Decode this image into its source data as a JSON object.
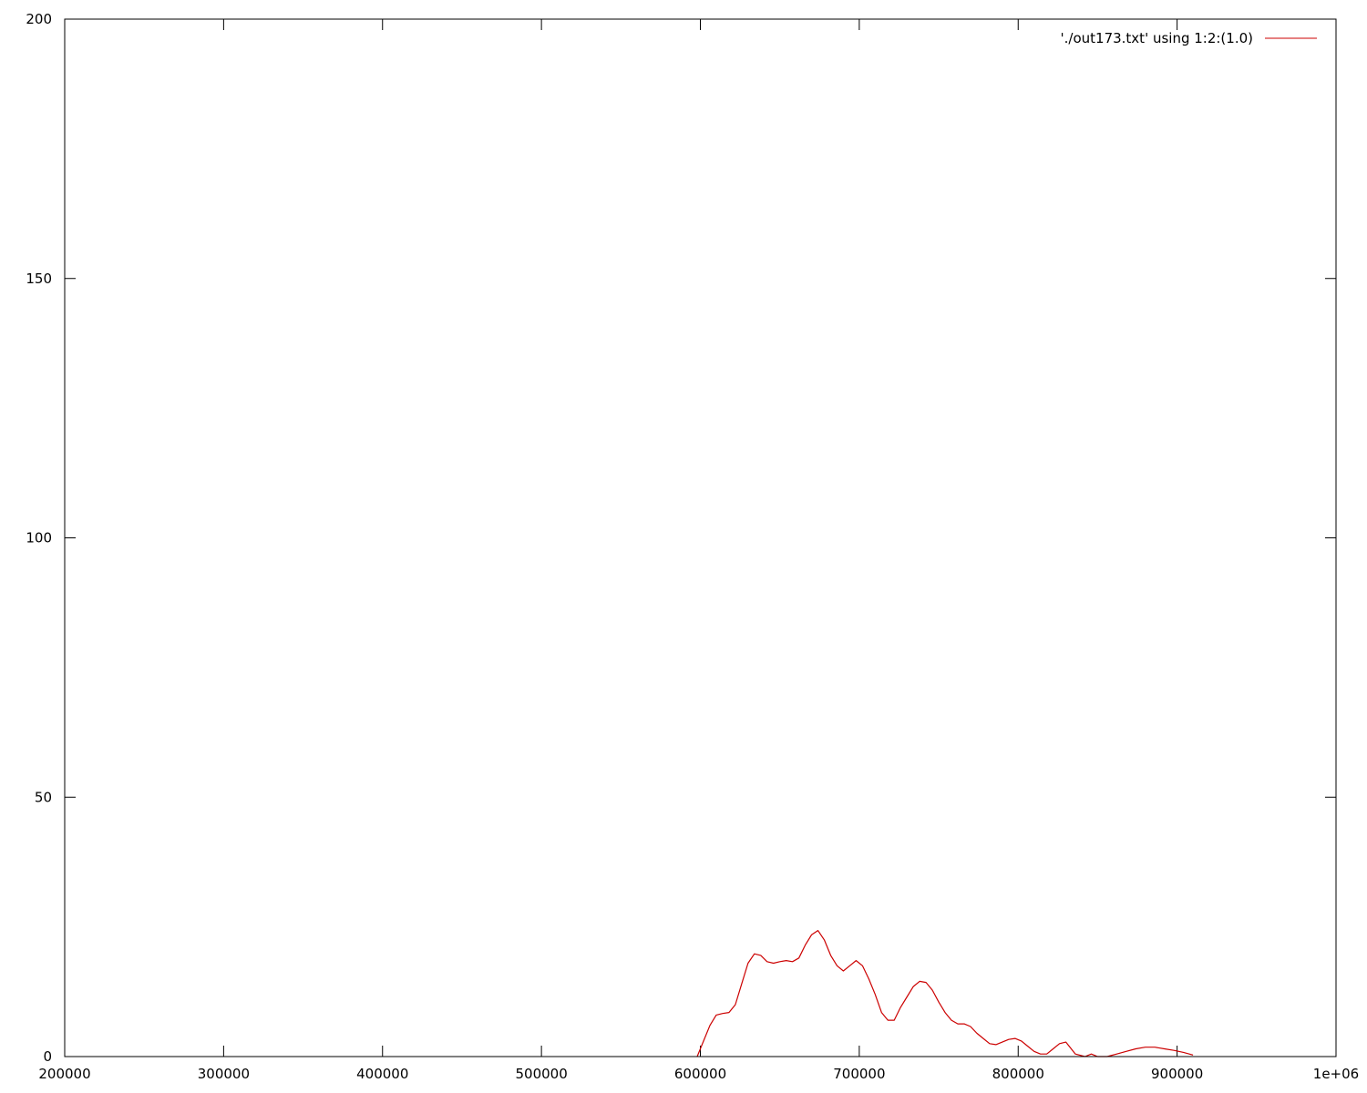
{
  "chart_data": {
    "type": "line",
    "title": "",
    "xlabel": "",
    "ylabel": "",
    "xlim": [
      200000,
      1000000
    ],
    "ylim": [
      0,
      200
    ],
    "x_ticks": [
      {
        "value": 200000,
        "label": "200000"
      },
      {
        "value": 300000,
        "label": "300000"
      },
      {
        "value": 400000,
        "label": "400000"
      },
      {
        "value": 500000,
        "label": "500000"
      },
      {
        "value": 600000,
        "label": "600000"
      },
      {
        "value": 700000,
        "label": "700000"
      },
      {
        "value": 800000,
        "label": "800000"
      },
      {
        "value": 900000,
        "label": "900000"
      },
      {
        "value": 1000000,
        "label": "1e+06"
      }
    ],
    "y_ticks": [
      {
        "value": 0,
        "label": "0"
      },
      {
        "value": 50,
        "label": "50"
      },
      {
        "value": 100,
        "label": "100"
      },
      {
        "value": 150,
        "label": "150"
      },
      {
        "value": 200,
        "label": "200"
      }
    ],
    "grid": false,
    "legend_position": "top-right",
    "colors": {
      "series": "#cc0000",
      "axes": "#000000",
      "background": "#ffffff"
    },
    "series": [
      {
        "name": "'./out173.txt' using 1:2:(1.0)",
        "x": [
          598000,
          602000,
          606000,
          610000,
          614000,
          618000,
          622000,
          626000,
          630000,
          634000,
          638000,
          642000,
          646000,
          650000,
          654000,
          658000,
          662000,
          666000,
          670000,
          674000,
          678000,
          682000,
          686000,
          690000,
          694000,
          698000,
          702000,
          706000,
          710000,
          714000,
          718000,
          722000,
          726000,
          730000,
          734000,
          738000,
          742000,
          746000,
          750000,
          754000,
          758000,
          762000,
          766000,
          770000,
          774000,
          778000,
          782000,
          786000,
          790000,
          794000,
          798000,
          802000,
          806000,
          810000,
          814000,
          818000,
          822000,
          826000,
          830000,
          836000,
          842000,
          846000,
          850000,
          856000,
          862000,
          868000,
          874000,
          880000,
          886000,
          892000,
          898000,
          904000,
          910000
        ],
        "y": [
          0.0,
          3.0,
          6.0,
          8.0,
          8.3,
          8.5,
          10.0,
          14.0,
          18.0,
          19.8,
          19.5,
          18.3,
          18.0,
          18.3,
          18.5,
          18.3,
          19.0,
          21.5,
          23.5,
          24.3,
          22.5,
          19.5,
          17.5,
          16.5,
          17.5,
          18.5,
          17.5,
          15.0,
          12.0,
          8.5,
          7.0,
          7.0,
          9.5,
          11.5,
          13.5,
          14.5,
          14.3,
          12.8,
          10.5,
          8.5,
          7.0,
          6.3,
          6.3,
          5.8,
          4.5,
          3.5,
          2.5,
          2.3,
          2.8,
          3.3,
          3.5,
          3.0,
          2.0,
          1.0,
          0.5,
          0.5,
          1.5,
          2.5,
          2.8,
          0.5,
          0.0,
          0.5,
          0.0,
          0.0,
          0.5,
          1.0,
          1.5,
          1.8,
          1.8,
          1.5,
          1.2,
          0.8,
          0.3
        ]
      }
    ]
  }
}
